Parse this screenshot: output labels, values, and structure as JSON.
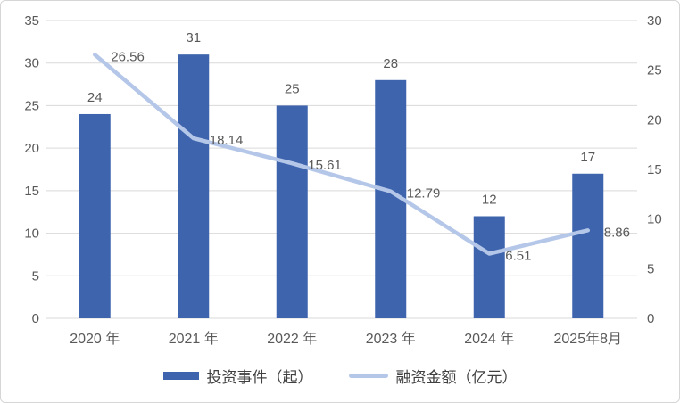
{
  "chart_data": {
    "type": "bar_line_combo",
    "title": "",
    "categories": [
      "2020 年",
      "2021 年",
      "2022 年",
      "2023 年",
      "2024 年",
      "2025年8月"
    ],
    "series": [
      {
        "name": "投资事件（起）",
        "type": "bar",
        "axis": "left",
        "values": [
          24,
          31,
          25,
          28,
          12,
          17
        ],
        "data_labels": [
          "24",
          "31",
          "25",
          "28",
          "12",
          "17"
        ],
        "color": "#3E64AD"
      },
      {
        "name": "融资金额（亿元）",
        "type": "line",
        "axis": "right",
        "values": [
          26.56,
          18.14,
          15.61,
          12.79,
          6.51,
          8.86
        ],
        "data_labels": [
          "26.56",
          "18.14",
          "15.61",
          "12.79",
          "6.51",
          "8.86"
        ],
        "color": "#B5C7E8"
      }
    ],
    "left_axis": {
      "min": 0,
      "max": 35,
      "step": 5,
      "tick_labels": [
        "35",
        "30",
        "25",
        "20",
        "15",
        "10",
        "5",
        "0"
      ]
    },
    "right_axis": {
      "min": 0,
      "max": 30,
      "step": 5,
      "tick_labels": [
        "30",
        "25",
        "20",
        "15",
        "10",
        "5",
        "0"
      ]
    },
    "grid": true,
    "legend_position": "bottom"
  },
  "colors": {
    "bar": "#3E64AD",
    "line": "#B5C7E8",
    "gridline": "#D9D9D9",
    "axis_text": "#595959",
    "data_label_text": "#595959",
    "legend_text": "#404040",
    "border": "#D6D6D6",
    "background": "#FFFFFF"
  }
}
